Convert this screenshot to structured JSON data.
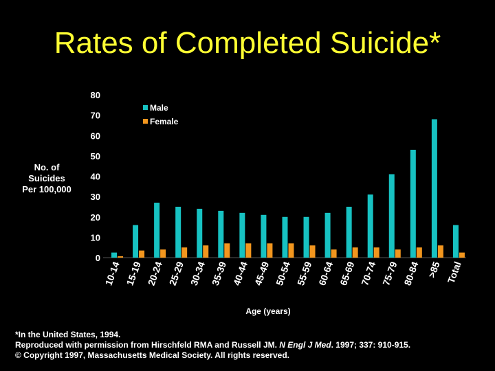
{
  "colors": {
    "background": "#000000",
    "title": "#ffff33",
    "male": "#17c2c2",
    "female": "#f2961e",
    "text": "#ffffff"
  },
  "chart_data": {
    "type": "bar",
    "title": "Rates of Completed Suicide*",
    "ylabel_lines": [
      "No. of",
      "Suicides",
      "Per 100,000"
    ],
    "xlabel": "Age (years)",
    "categories": [
      "10-14",
      "15-19",
      "20-24",
      "25-29",
      "30-34",
      "35-39",
      "40-44",
      "45-49",
      "50-54",
      "55-59",
      "60-64",
      "65-69",
      "70-74",
      "75-79",
      "80-84",
      ">85",
      "Total"
    ],
    "series": [
      {
        "name": "Male",
        "color": "#17c2c2",
        "values": [
          2.5,
          16,
          27,
          25,
          24,
          23,
          22,
          21,
          20,
          20,
          22,
          25,
          31,
          41,
          53,
          68,
          16
        ]
      },
      {
        "name": "Female",
        "color": "#f2961e",
        "values": [
          0.7,
          3.5,
          4,
          5,
          6,
          7,
          7,
          7,
          7,
          6,
          4,
          5,
          5,
          4,
          5,
          6,
          2.5
        ]
      }
    ],
    "ylim": [
      0,
      80
    ],
    "yticks": [
      0,
      10,
      20,
      30,
      40,
      50,
      60,
      70,
      80
    ],
    "legend_position": "top-left",
    "grid": false
  },
  "footnote": {
    "line1": "*In the United States, 1994.",
    "line2_a": "Reproduced with permission from Hirschfeld RMA and Russell JM. ",
    "line2_journal": "N Engl J Med",
    "line2_b": ". 1997; 337: 910-915.",
    "line3": "© Copyright 1997, Massachusetts Medical Society.  All rights reserved."
  }
}
